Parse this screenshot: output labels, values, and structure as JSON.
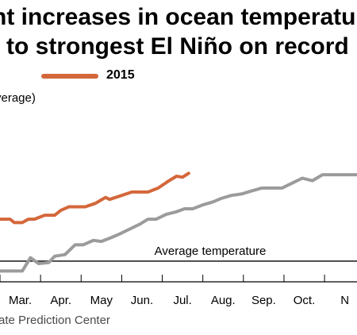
{
  "title": {
    "line1": "nt increases in ocean temperatu",
    "line2": "to strongest El Niño on record"
  },
  "legend": {
    "label": "2015",
    "color": "#d4673a"
  },
  "y_axis_label": "verage)",
  "source": "ate Prediction Center",
  "chart_data": {
    "type": "line",
    "title": "nt increases in ocean temperatu / to strongest El Niño on record",
    "x_unit": "month (fractional, 1.0 = Jan.)",
    "ylabel": "verage)",
    "ylim": [
      -0.5,
      3.2
    ],
    "xlim": [
      2.5,
      11.3
    ],
    "grid": false,
    "legend_position": "top-left",
    "categories": [
      "Mar.",
      "Apr.",
      "May",
      "Jun.",
      "Jul.",
      "Aug.",
      "Sep.",
      "Oct.",
      "N"
    ],
    "category_positions": [
      3.0,
      4.0,
      5.0,
      6.0,
      7.0,
      8.0,
      9.0,
      10.0,
      11.0
    ],
    "reference_line": {
      "label": "Average temperature",
      "y": 0.0
    },
    "series": [
      {
        "name": "2015",
        "color": "#d4673a",
        "x": [
          2.5,
          2.75,
          2.85,
          3.05,
          3.2,
          3.35,
          3.6,
          3.85,
          4.0,
          4.2,
          4.45,
          4.6,
          4.85,
          5.1,
          5.2,
          5.5,
          5.75,
          5.9,
          6.15,
          6.4,
          6.65,
          6.85,
          7.0,
          7.15
        ],
        "values": [
          0.85,
          0.85,
          0.78,
          0.78,
          0.85,
          0.85,
          0.93,
          0.93,
          1.03,
          1.1,
          1.1,
          1.1,
          1.17,
          1.29,
          1.25,
          1.33,
          1.4,
          1.4,
          1.4,
          1.48,
          1.62,
          1.72,
          1.7,
          1.78
        ]
      },
      {
        "name": "",
        "color": "#9b9b9b",
        "x": [
          2.5,
          2.85,
          3.05,
          3.25,
          3.45,
          3.7,
          3.85,
          4.1,
          4.35,
          4.55,
          4.8,
          5.0,
          5.25,
          5.45,
          5.7,
          5.95,
          6.15,
          6.35,
          6.6,
          6.85,
          7.05,
          7.25,
          7.5,
          7.75,
          7.95,
          8.2,
          8.45,
          8.7,
          8.95,
          9.2,
          9.45,
          9.7,
          9.95,
          10.2,
          10.45,
          10.7,
          10.95,
          11.3
        ],
        "values": [
          -0.2,
          -0.2,
          -0.2,
          0.07,
          -0.05,
          -0.03,
          0.1,
          0.13,
          0.33,
          0.33,
          0.42,
          0.4,
          0.48,
          0.55,
          0.65,
          0.75,
          0.85,
          0.85,
          0.95,
          1.0,
          1.06,
          1.06,
          1.14,
          1.2,
          1.27,
          1.33,
          1.36,
          1.42,
          1.48,
          1.48,
          1.48,
          1.58,
          1.68,
          1.63,
          1.75,
          1.75,
          1.75,
          1.75
        ]
      }
    ]
  }
}
